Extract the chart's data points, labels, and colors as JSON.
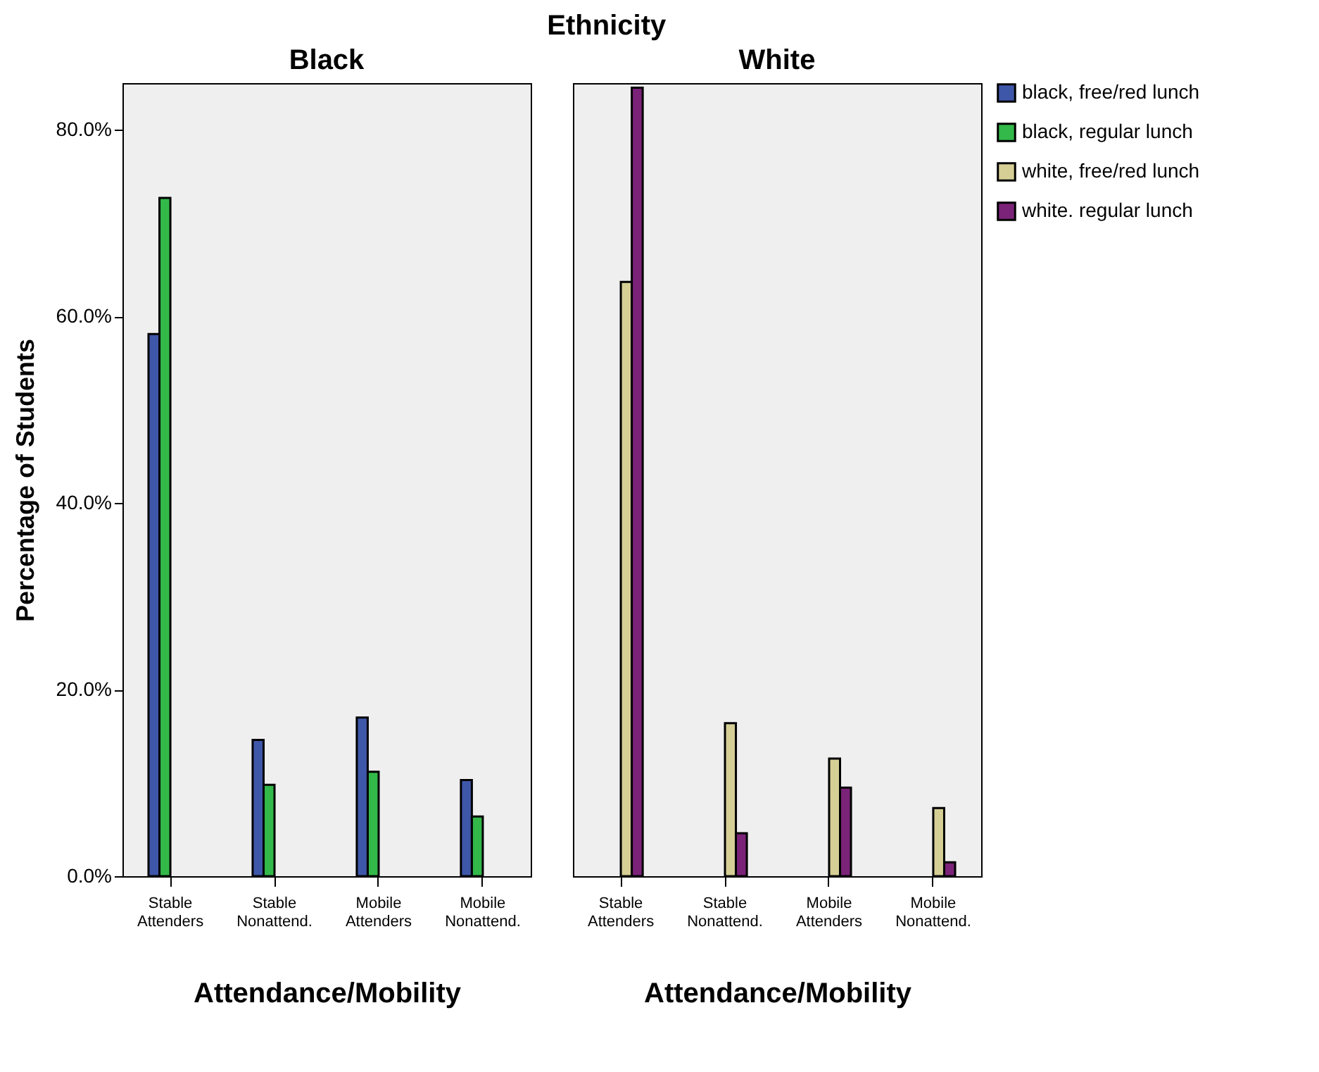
{
  "chart_data": [
    {
      "type": "bar",
      "title": "Black",
      "annotations": [
        "Ethnicity"
      ],
      "xlabel": "Attendance/Mobility",
      "ylabel": "Percentage of Students",
      "categories": [
        "Stable Attenders",
        "Stable Nonattend.",
        "Mobile Attenders",
        "Mobile Nonattend."
      ],
      "series": [
        {
          "name": "black, free/red lunch",
          "color": "#3f57a8",
          "values": [
            58.1,
            14.6,
            17.0,
            10.3
          ]
        },
        {
          "name": "black, regular lunch",
          "color": "#33b84a",
          "values": [
            72.7,
            9.8,
            11.2,
            6.4
          ]
        }
      ],
      "ylim": [
        0,
        85
      ],
      "yticks": [
        {
          "value": 0,
          "label": "0.0%"
        },
        {
          "value": 20,
          "label": "20.0%"
        },
        {
          "value": 40,
          "label": "40.0%"
        },
        {
          "value": 60,
          "label": "60.0%"
        },
        {
          "value": 80,
          "label": "80.0%"
        }
      ],
      "legend": "top right"
    },
    {
      "type": "bar",
      "title": "White",
      "xlabel": "Attendance/Mobility",
      "categories": [
        "Stable Attenders",
        "Stable Nonattend.",
        "Mobile Attenders",
        "Mobile Nonattend."
      ],
      "series": [
        {
          "name": "white, free/red lunch",
          "color": "#d5cf96",
          "values": [
            63.7,
            16.4,
            12.6,
            7.3
          ]
        },
        {
          "name": "white. regular lunch",
          "color": "#7b2378",
          "values": [
            84.5,
            4.6,
            9.5,
            1.5
          ]
        }
      ],
      "ylim": [
        0,
        85
      ],
      "tick_labels": "x",
      "legend": "top right"
    }
  ]
}
